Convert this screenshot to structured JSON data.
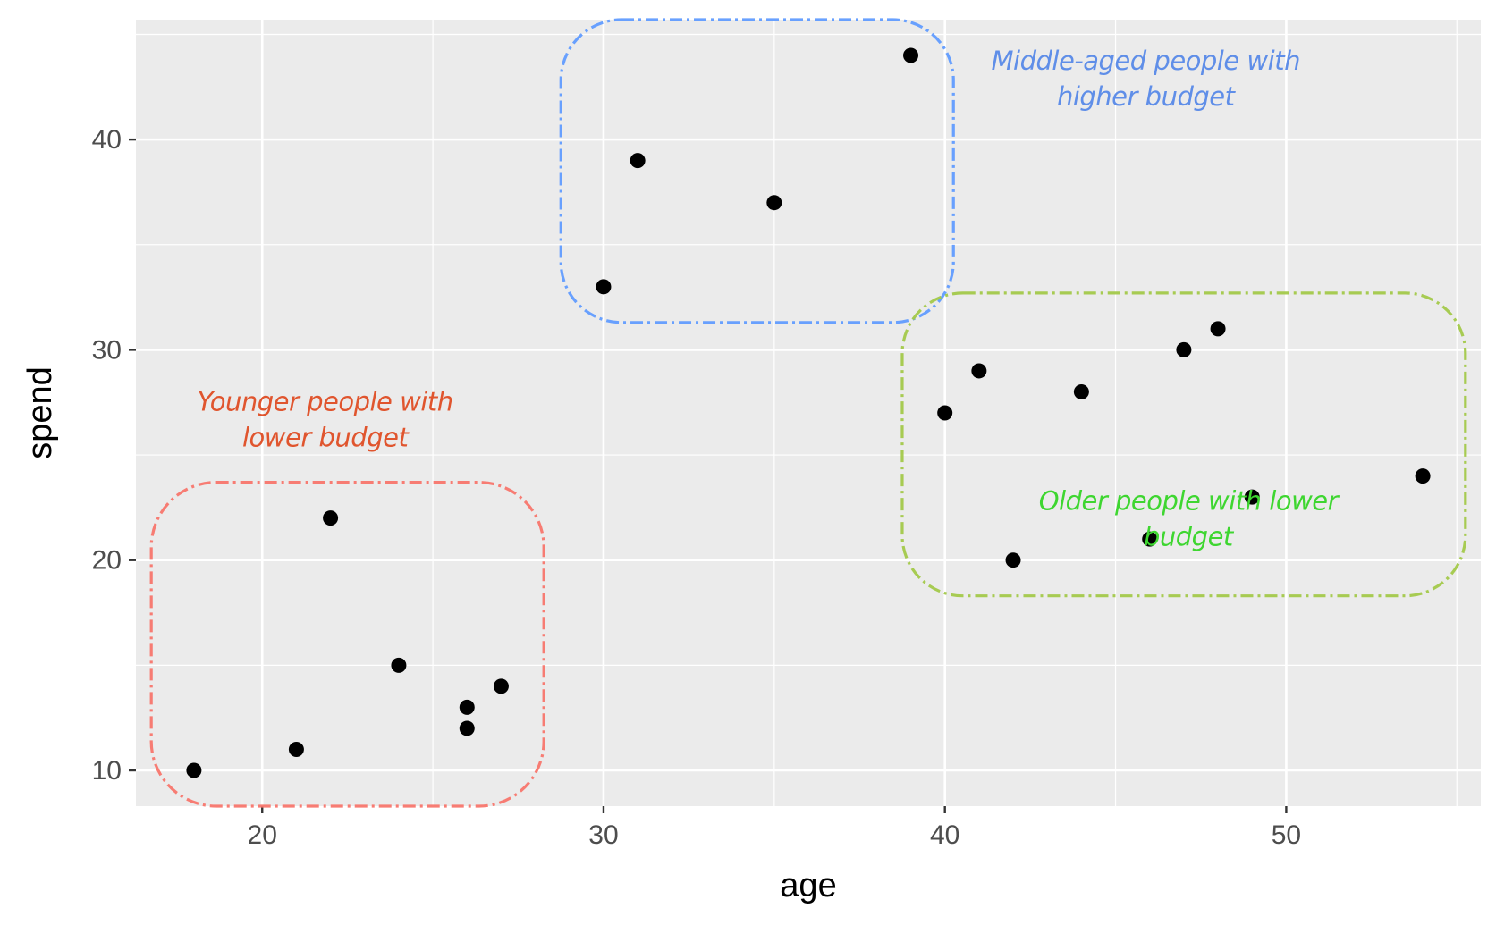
{
  "chart_data": {
    "type": "scatter",
    "xlabel": "age",
    "ylabel": "spend",
    "xlim": [
      16.3,
      55.7
    ],
    "ylim": [
      8.3,
      45.7
    ],
    "x_ticks": [
      20,
      30,
      40,
      50
    ],
    "y_ticks": [
      10,
      20,
      30,
      40
    ],
    "grid": true,
    "points": [
      {
        "x": 18,
        "y": 10
      },
      {
        "x": 21,
        "y": 11
      },
      {
        "x": 22,
        "y": 22
      },
      {
        "x": 24,
        "y": 15
      },
      {
        "x": 26,
        "y": 13
      },
      {
        "x": 26,
        "y": 12
      },
      {
        "x": 27,
        "y": 14
      },
      {
        "x": 30,
        "y": 33
      },
      {
        "x": 31,
        "y": 39
      },
      {
        "x": 35,
        "y": 37
      },
      {
        "x": 39,
        "y": 44
      },
      {
        "x": 40,
        "y": 27
      },
      {
        "x": 41,
        "y": 29
      },
      {
        "x": 42,
        "y": 20
      },
      {
        "x": 44,
        "y": 28
      },
      {
        "x": 46,
        "y": 21
      },
      {
        "x": 47,
        "y": 30
      },
      {
        "x": 48,
        "y": 31
      },
      {
        "x": 49,
        "y": 23
      },
      {
        "x": 54,
        "y": 24
      }
    ],
    "groups": [
      {
        "label_lines": [
          "Younger people with",
          "lower budget"
        ],
        "color": "#f8766d",
        "label_color": "#e0552e",
        "x_range": [
          18,
          27
        ],
        "y_range": [
          10,
          22
        ]
      },
      {
        "label_lines": [
          "Middle-aged people with",
          "higher budget"
        ],
        "color": "#619cff",
        "label_color": "#5f8ee8",
        "x_range": [
          30,
          39
        ],
        "y_range": [
          33,
          44
        ]
      },
      {
        "label_lines": [
          "Older people with lower",
          "budget"
        ],
        "color": "#a3c94a",
        "label_color": "#3ed630",
        "x_range": [
          40,
          54
        ],
        "y_range": [
          20,
          31
        ]
      }
    ]
  }
}
